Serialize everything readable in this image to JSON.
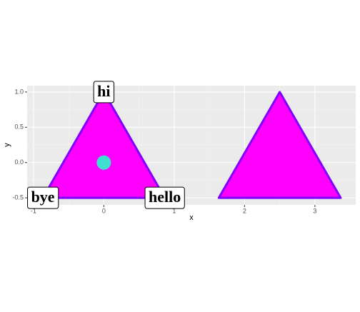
{
  "chart_data": {
    "type": "polygon",
    "x_label": "x",
    "y_label": "y",
    "xlim": [
      -1.09,
      3.58
    ],
    "ylim": [
      -0.6,
      1.09
    ],
    "xticks": [
      -1,
      0,
      1,
      2,
      3
    ],
    "yticks": [
      -0.5,
      {
        "value": 0,
        "label": "0.0"
      },
      0.5,
      {
        "value": 1,
        "label": "1.0"
      }
    ],
    "grid": true,
    "fill_color": "#ff00ff",
    "line_color": "#7f00ff",
    "series": [
      {
        "x": [
          -0.866,
          0.866,
          0
        ],
        "y": [
          -0.5,
          -0.5,
          1
        ]
      },
      {
        "x": [
          1.634,
          3.366,
          2.5
        ],
        "y": [
          -0.5,
          -0.5,
          1
        ]
      }
    ],
    "points": {
      "x": [
        0
      ],
      "y": [
        0
      ],
      "color": "#40e0d0"
    },
    "labels": {
      "texts": [
        "hi",
        "bye",
        "hello"
      ],
      "x": [
        0,
        -0.866,
        0.866
      ],
      "y": [
        1,
        -0.5,
        -0.5
      ]
    }
  }
}
